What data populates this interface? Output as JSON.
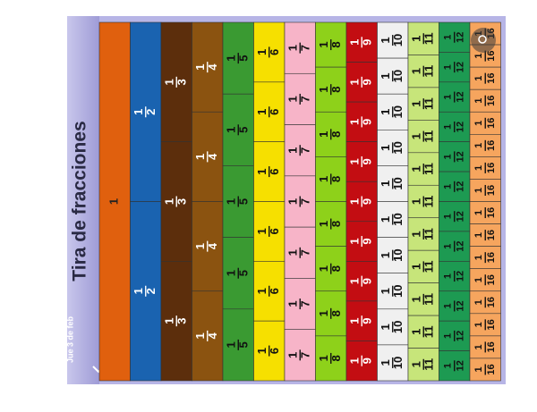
{
  "title": "Tira de fracciones",
  "date": "Jue 3 de feb",
  "strips": [
    {
      "numerator": "1",
      "color": "#e0600e",
      "text_color": "#222"
    },
    {
      "numerator": "1",
      "denominator": "2",
      "color": "#1a63b0",
      "text_color": "#fff"
    },
    {
      "numerator": "1",
      "denominator": "3",
      "color": "#5c2e0c",
      "text_color": "#fff"
    },
    {
      "numerator": "1",
      "denominator": "4",
      "color": "#8b5310",
      "text_color": "#fff"
    },
    {
      "numerator": "1",
      "denominator": "5",
      "color": "#3a9a32",
      "text_color": "#111"
    },
    {
      "numerator": "1",
      "denominator": "6",
      "color": "#f6e000",
      "text_color": "#111"
    },
    {
      "numerator": "1",
      "denominator": "7",
      "color": "#f7b4c8",
      "text_color": "#111"
    },
    {
      "numerator": "1",
      "denominator": "8",
      "color": "#8ed11a",
      "text_color": "#111"
    },
    {
      "numerator": "1",
      "denominator": "9",
      "color": "#c30d12",
      "text_color": "#fff"
    },
    {
      "numerator": "1",
      "denominator": "10",
      "color": "#f0f0f0",
      "text_color": "#111"
    },
    {
      "numerator": "1",
      "denominator": "11",
      "color": "#c7e57a",
      "text_color": "#111"
    },
    {
      "numerator": "1",
      "denominator": "12",
      "color": "#1d9a52",
      "text_color": "#111"
    },
    {
      "numerator": "1",
      "denominator": "16",
      "color": "#f6a55e",
      "text_color": "#111"
    }
  ]
}
